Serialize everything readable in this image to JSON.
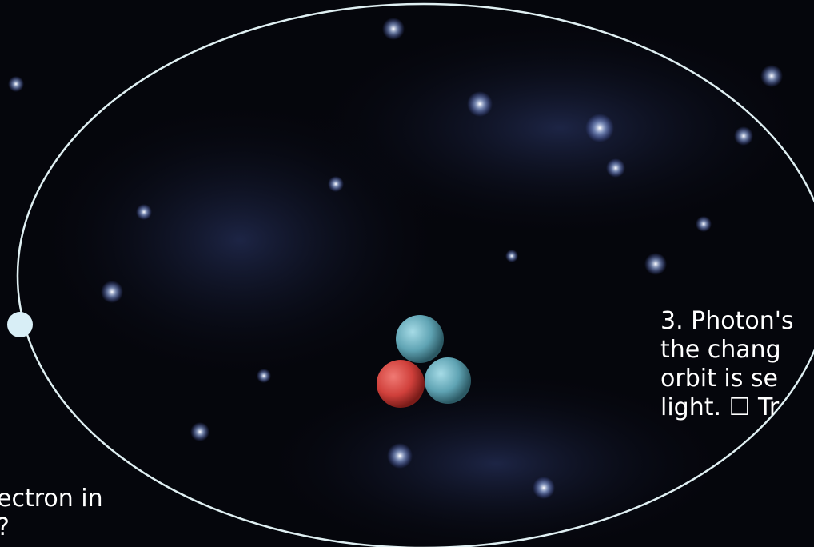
{
  "annotations": {
    "right": [
      "3. Photon's",
      "the chang",
      "orbit is se",
      "light. ☐ Tr"
    ],
    "left": [
      "ectron in",
      "?"
    ]
  }
}
